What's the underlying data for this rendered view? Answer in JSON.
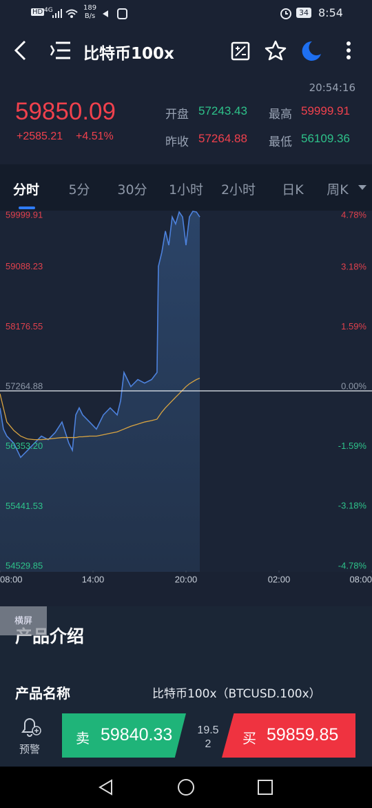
{
  "status_bar": {
    "network": "4G",
    "speed": "189",
    "speed_unit": "B/s",
    "battery": "34",
    "time": "8:54"
  },
  "header": {
    "title": "比特币100x"
  },
  "quote": {
    "time": "20:54:16",
    "price": "59850.09",
    "change": "+2585.21",
    "change_pct": "+4.51%",
    "open_label": "开盘",
    "open": "57243.43",
    "high_label": "最高",
    "high": "59999.91",
    "prev_close_label": "昨收",
    "prev_close": "57264.88",
    "low_label": "最低",
    "low": "56109.36"
  },
  "tabs": [
    "分时",
    "5分",
    "30分",
    "1小时",
    "2小时",
    "日K",
    "周K"
  ],
  "chart_data": {
    "type": "line",
    "x": [
      8,
      8.22,
      8.44,
      8.89,
      9.33,
      9.78,
      10.22,
      10.67,
      11.11,
      11.56,
      12,
      12.44,
      12.67,
      12.89,
      13.11,
      13.33,
      13.78,
      14.22,
      14.67,
      15.11,
      15.56,
      15.78,
      16,
      16.22,
      16.44,
      16.89,
      17.33,
      17.78,
      18.13,
      18.22,
      18.44,
      18.67,
      18.89,
      19.11,
      19.33,
      19.56,
      19.78,
      20,
      20.22,
      20.44,
      20.67,
      20.89
    ],
    "series": [
      {
        "color": "#4d82dd",
        "values": [
          57006,
          56683,
          56576,
          56468,
          56252,
          56360,
          56468,
          56576,
          56522,
          56630,
          56791,
          56468,
          56360,
          56899,
          57006,
          56899,
          56791,
          56683,
          56899,
          57006,
          56899,
          57114,
          57545,
          57437,
          57330,
          57437,
          57383,
          57437,
          57545,
          59161,
          59376,
          59699,
          59484,
          59914,
          59807,
          59990,
          59914,
          59484,
          59914,
          59999.91,
          59990,
          59914
        ]
      },
      {
        "color": "#d9a441",
        "values": [
          57222,
          57006,
          56791,
          56662,
          56576,
          56532,
          56522,
          56522,
          56532,
          56543,
          56554,
          56554,
          56554,
          56554,
          56565,
          56565,
          56576,
          56576,
          56597,
          56619,
          56640,
          56662,
          56683,
          56705,
          56726,
          56759,
          56791,
          56812,
          56834,
          56866,
          56941,
          57006,
          57060,
          57114,
          57168,
          57222,
          57276,
          57330,
          57373,
          57405,
          57437,
          57459
        ]
      }
    ],
    "xlim": [
      8,
      32
    ],
    "xticks": [
      {
        "value": 8,
        "label": "08:00"
      },
      {
        "value": 14,
        "label": "14:00"
      },
      {
        "value": 20,
        "label": "20:00"
      },
      {
        "value": 26,
        "label": "02:00"
      },
      {
        "value": 32,
        "label": "08:00"
      }
    ],
    "ylim": [
      54529.85,
      59999.91
    ],
    "yticks": [
      59999.91,
      59088.23,
      58176.55,
      57264.88,
      {
        "value": 56353.2,
        "label": "56353.20"
      },
      55441.53,
      54529.85
    ],
    "y2lim": [
      -4.78,
      4.78
    ],
    "y2ticks": [
      {
        "value": 4.78,
        "label": "4.78%"
      },
      {
        "value": 3.18,
        "label": "3.18%"
      },
      {
        "value": 1.59,
        "label": "1.59%"
      },
      {
        "value": 0,
        "label": "0.00%"
      },
      {
        "value": -1.59,
        "label": "-1.59%"
      },
      {
        "value": -3.18,
        "label": "-3.18%"
      },
      {
        "value": -4.78,
        "label": "-4.78%"
      }
    ]
  },
  "landscape_button": "横屏",
  "section": {
    "title": "产品介绍",
    "name_label": "产品名称",
    "name_value": "比特币100x（BTCUSD.100x）"
  },
  "bottom_bar": {
    "alert": "预警",
    "sell_label": "卖",
    "sell_price": "59840.33",
    "spread": "19.52",
    "buy_label": "买",
    "buy_price": "59859.85"
  }
}
